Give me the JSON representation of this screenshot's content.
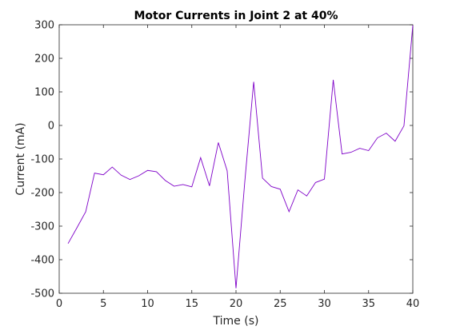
{
  "chart_data": {
    "type": "line",
    "title": "Motor Currents in Joint 2 at 40%",
    "xlabel": "Time (s)",
    "ylabel": "Current (mA)",
    "xlim": [
      0,
      40
    ],
    "ylim": [
      -500,
      300
    ],
    "xticks": [
      0,
      5,
      10,
      15,
      20,
      25,
      30,
      35,
      40
    ],
    "yticks": [
      -500,
      -400,
      -300,
      -200,
      -100,
      0,
      100,
      200,
      300
    ],
    "grid": false,
    "series": [
      {
        "color": "#7e00c8",
        "x": [
          1,
          2,
          3,
          4,
          5,
          6,
          7,
          8,
          9,
          10,
          11,
          12,
          13,
          14,
          15,
          16,
          17,
          18,
          19,
          20,
          21,
          22,
          23,
          24,
          25,
          26,
          27,
          28,
          29,
          30,
          31,
          32,
          33,
          34,
          35,
          36,
          37,
          38,
          39,
          40
        ],
        "y": [
          -352,
          -305,
          -257,
          -142,
          -147,
          -124,
          -148,
          -161,
          -150,
          -134,
          -138,
          -164,
          -181,
          -176,
          -183,
          -96,
          -180,
          -51,
          -135,
          -485,
          -166,
          130,
          -157,
          -182,
          -190,
          -257,
          -192,
          -210,
          -170,
          -160,
          136,
          -85,
          -80,
          -68,
          -75,
          -37,
          -23,
          -47,
          -1,
          298
        ]
      }
    ]
  }
}
